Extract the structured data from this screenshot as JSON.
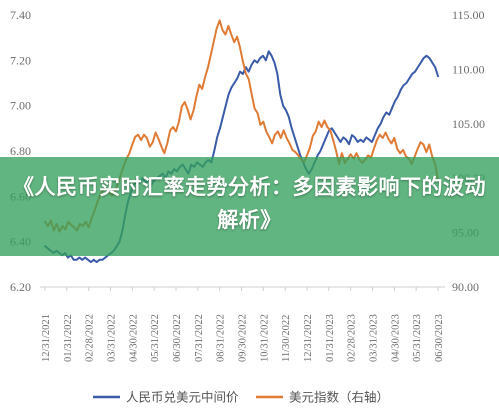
{
  "banner": {
    "title": "《人民币实时汇率走势分析：多因素影响下的波动解析》",
    "background": "#34a05c"
  },
  "chart_data": {
    "type": "line",
    "title": "",
    "y_left": {
      "range": [
        6.2,
        7.4
      ],
      "ticks": [
        "6.20",
        "6.40",
        "6.60",
        "6.80",
        "7.00",
        "7.20",
        "7.40"
      ]
    },
    "y_right": {
      "range": [
        90.0,
        115.0
      ],
      "ticks": [
        "90.00",
        "95.00",
        "100.00",
        "105.00",
        "110.00",
        "115.00"
      ]
    },
    "x_ticks": [
      "12/31/2021",
      "01/31/2022",
      "02/28/2022",
      "03/31/2022",
      "04/30/2022",
      "05/31/2022",
      "06/30/2022",
      "07/31/2022",
      "08/31/2022",
      "09/30/2022",
      "10/31/2022",
      "11/30/2022",
      "12/31/2022",
      "01/31/2023",
      "02/28/2023",
      "03/31/2023",
      "04/30/2023",
      "05/31/2023",
      "06/30/2023"
    ],
    "grid": false,
    "legend_position": "bottom",
    "series": [
      {
        "name": "人民币兑美元中间价",
        "axis": "left",
        "color": "#3a5ba8",
        "values": [
          6.38,
          6.37,
          6.36,
          6.35,
          6.36,
          6.35,
          6.34,
          6.35,
          6.33,
          6.34,
          6.32,
          6.32,
          6.33,
          6.32,
          6.33,
          6.32,
          6.31,
          6.32,
          6.31,
          6.32,
          6.32,
          6.33,
          6.34,
          6.35,
          6.36,
          6.38,
          6.4,
          6.45,
          6.52,
          6.58,
          6.62,
          6.65,
          6.67,
          6.66,
          6.68,
          6.66,
          6.67,
          6.65,
          6.67,
          6.68,
          6.69,
          6.7,
          6.68,
          6.71,
          6.7,
          6.72,
          6.71,
          6.73,
          6.74,
          6.72,
          6.7,
          6.74,
          6.73,
          6.75,
          6.74,
          6.73,
          6.75,
          6.76,
          6.75,
          6.8,
          6.86,
          6.9,
          6.95,
          7.0,
          7.05,
          7.08,
          7.1,
          7.12,
          7.15,
          7.14,
          7.17,
          7.15,
          7.18,
          7.2,
          7.19,
          7.21,
          7.22,
          7.2,
          7.24,
          7.22,
          7.19,
          7.14,
          7.05,
          7.0,
          6.98,
          6.95,
          6.9,
          6.86,
          6.82,
          6.78,
          6.75,
          6.72,
          6.7,
          6.72,
          6.75,
          6.78,
          6.8,
          6.83,
          6.86,
          6.89,
          6.9,
          6.88,
          6.86,
          6.84,
          6.86,
          6.85,
          6.83,
          6.87,
          6.86,
          6.84,
          6.85,
          6.84,
          6.86,
          6.85,
          6.84,
          6.87,
          6.9,
          6.92,
          6.95,
          6.97,
          6.96,
          6.99,
          7.02,
          7.04,
          7.07,
          7.09,
          7.1,
          7.12,
          7.14,
          7.15,
          7.17,
          7.19,
          7.21,
          7.22,
          7.21,
          7.19,
          7.17,
          7.13
        ]
      },
      {
        "name": "美元指数（右轴）",
        "axis": "right",
        "color": "#e07b35",
        "values": [
          96.0,
          95.6,
          96.1,
          95.2,
          95.8,
          95.1,
          95.6,
          95.3,
          96.0,
          95.7,
          95.5,
          95.2,
          95.8,
          95.6,
          96.0,
          95.5,
          96.3,
          97.0,
          97.8,
          98.5,
          98.9,
          99.1,
          98.7,
          98.4,
          98.8,
          99.5,
          100.3,
          101.1,
          101.8,
          102.3,
          103.1,
          103.8,
          104.0,
          103.5,
          104.0,
          103.7,
          102.9,
          103.3,
          104.2,
          103.6,
          102.9,
          102.3,
          103.2,
          104.4,
          104.7,
          104.3,
          105.2,
          106.6,
          107.0,
          106.3,
          105.4,
          106.2,
          107.5,
          108.6,
          108.2,
          109.3,
          110.2,
          111.4,
          112.6,
          113.8,
          114.5,
          113.6,
          113.2,
          114.0,
          113.2,
          112.5,
          113.0,
          112.0,
          110.7,
          109.6,
          109.1,
          107.7,
          106.4,
          106.0,
          104.9,
          105.2,
          104.3,
          103.8,
          103.2,
          104.0,
          104.3,
          103.7,
          104.4,
          103.7,
          103.2,
          102.6,
          102.4,
          102.1,
          101.7,
          101.5,
          102.1,
          102.8,
          103.9,
          104.3,
          105.2,
          104.7,
          105.3,
          104.7,
          104.4,
          103.5,
          102.5,
          101.3,
          102.3,
          101.4,
          101.8,
          102.2,
          101.8,
          102.3,
          101.7,
          101.4,
          101.7,
          102.1,
          101.9,
          102.7,
          103.5,
          104.0,
          103.7,
          104.2,
          103.6,
          103.2,
          103.7,
          102.7,
          102.3,
          102.6,
          102.0,
          101.8,
          101.3,
          102.0,
          102.7,
          103.3,
          103.1,
          102.4,
          103.1,
          102.0,
          101.3,
          99.8
        ]
      }
    ]
  }
}
